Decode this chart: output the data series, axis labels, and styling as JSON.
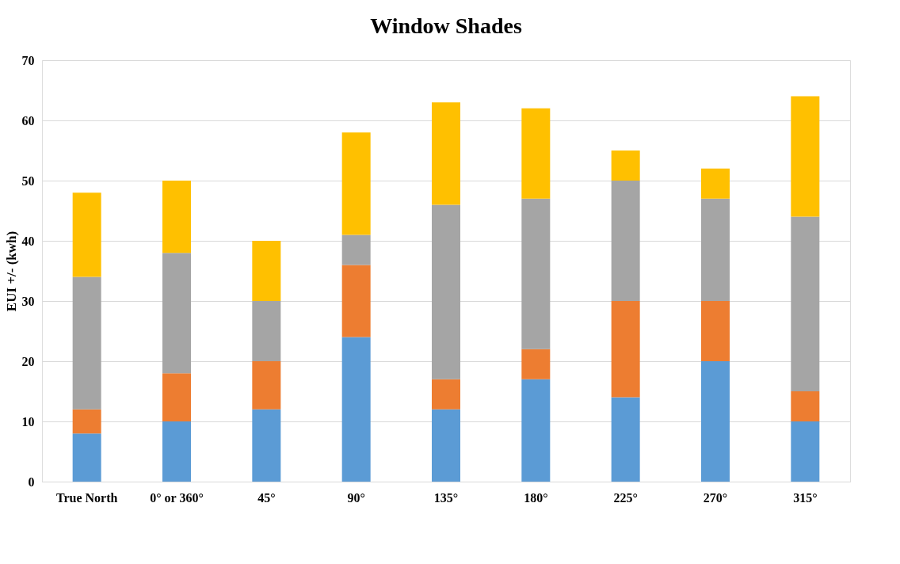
{
  "chart_data": {
    "type": "bar",
    "title": "Window Shades",
    "ylabel": "EUI +/- (kwh)",
    "stacked": true,
    "grid": "y",
    "categories": [
      "True North",
      "0° or 360°",
      "45°",
      "90°",
      "135°",
      "180°",
      "225°",
      "270°",
      "315°"
    ],
    "ylim": [
      0,
      70
    ],
    "yticks": [
      0,
      10,
      20,
      30,
      40,
      50,
      60,
      70
    ],
    "series": [
      {
        "color": "#5b9bd5",
        "values": [
          8,
          10,
          12,
          24,
          12,
          17,
          14,
          20,
          10
        ]
      },
      {
        "color": "#ed7d31",
        "values": [
          4,
          8,
          8,
          12,
          5,
          5,
          16,
          10,
          5
        ]
      },
      {
        "color": "#a5a5a5",
        "values": [
          22,
          20,
          10,
          5,
          29,
          25,
          20,
          17,
          29
        ]
      },
      {
        "color": "#ffc000",
        "values": [
          14,
          12,
          10,
          17,
          17,
          15,
          5,
          5,
          20
        ]
      }
    ]
  }
}
